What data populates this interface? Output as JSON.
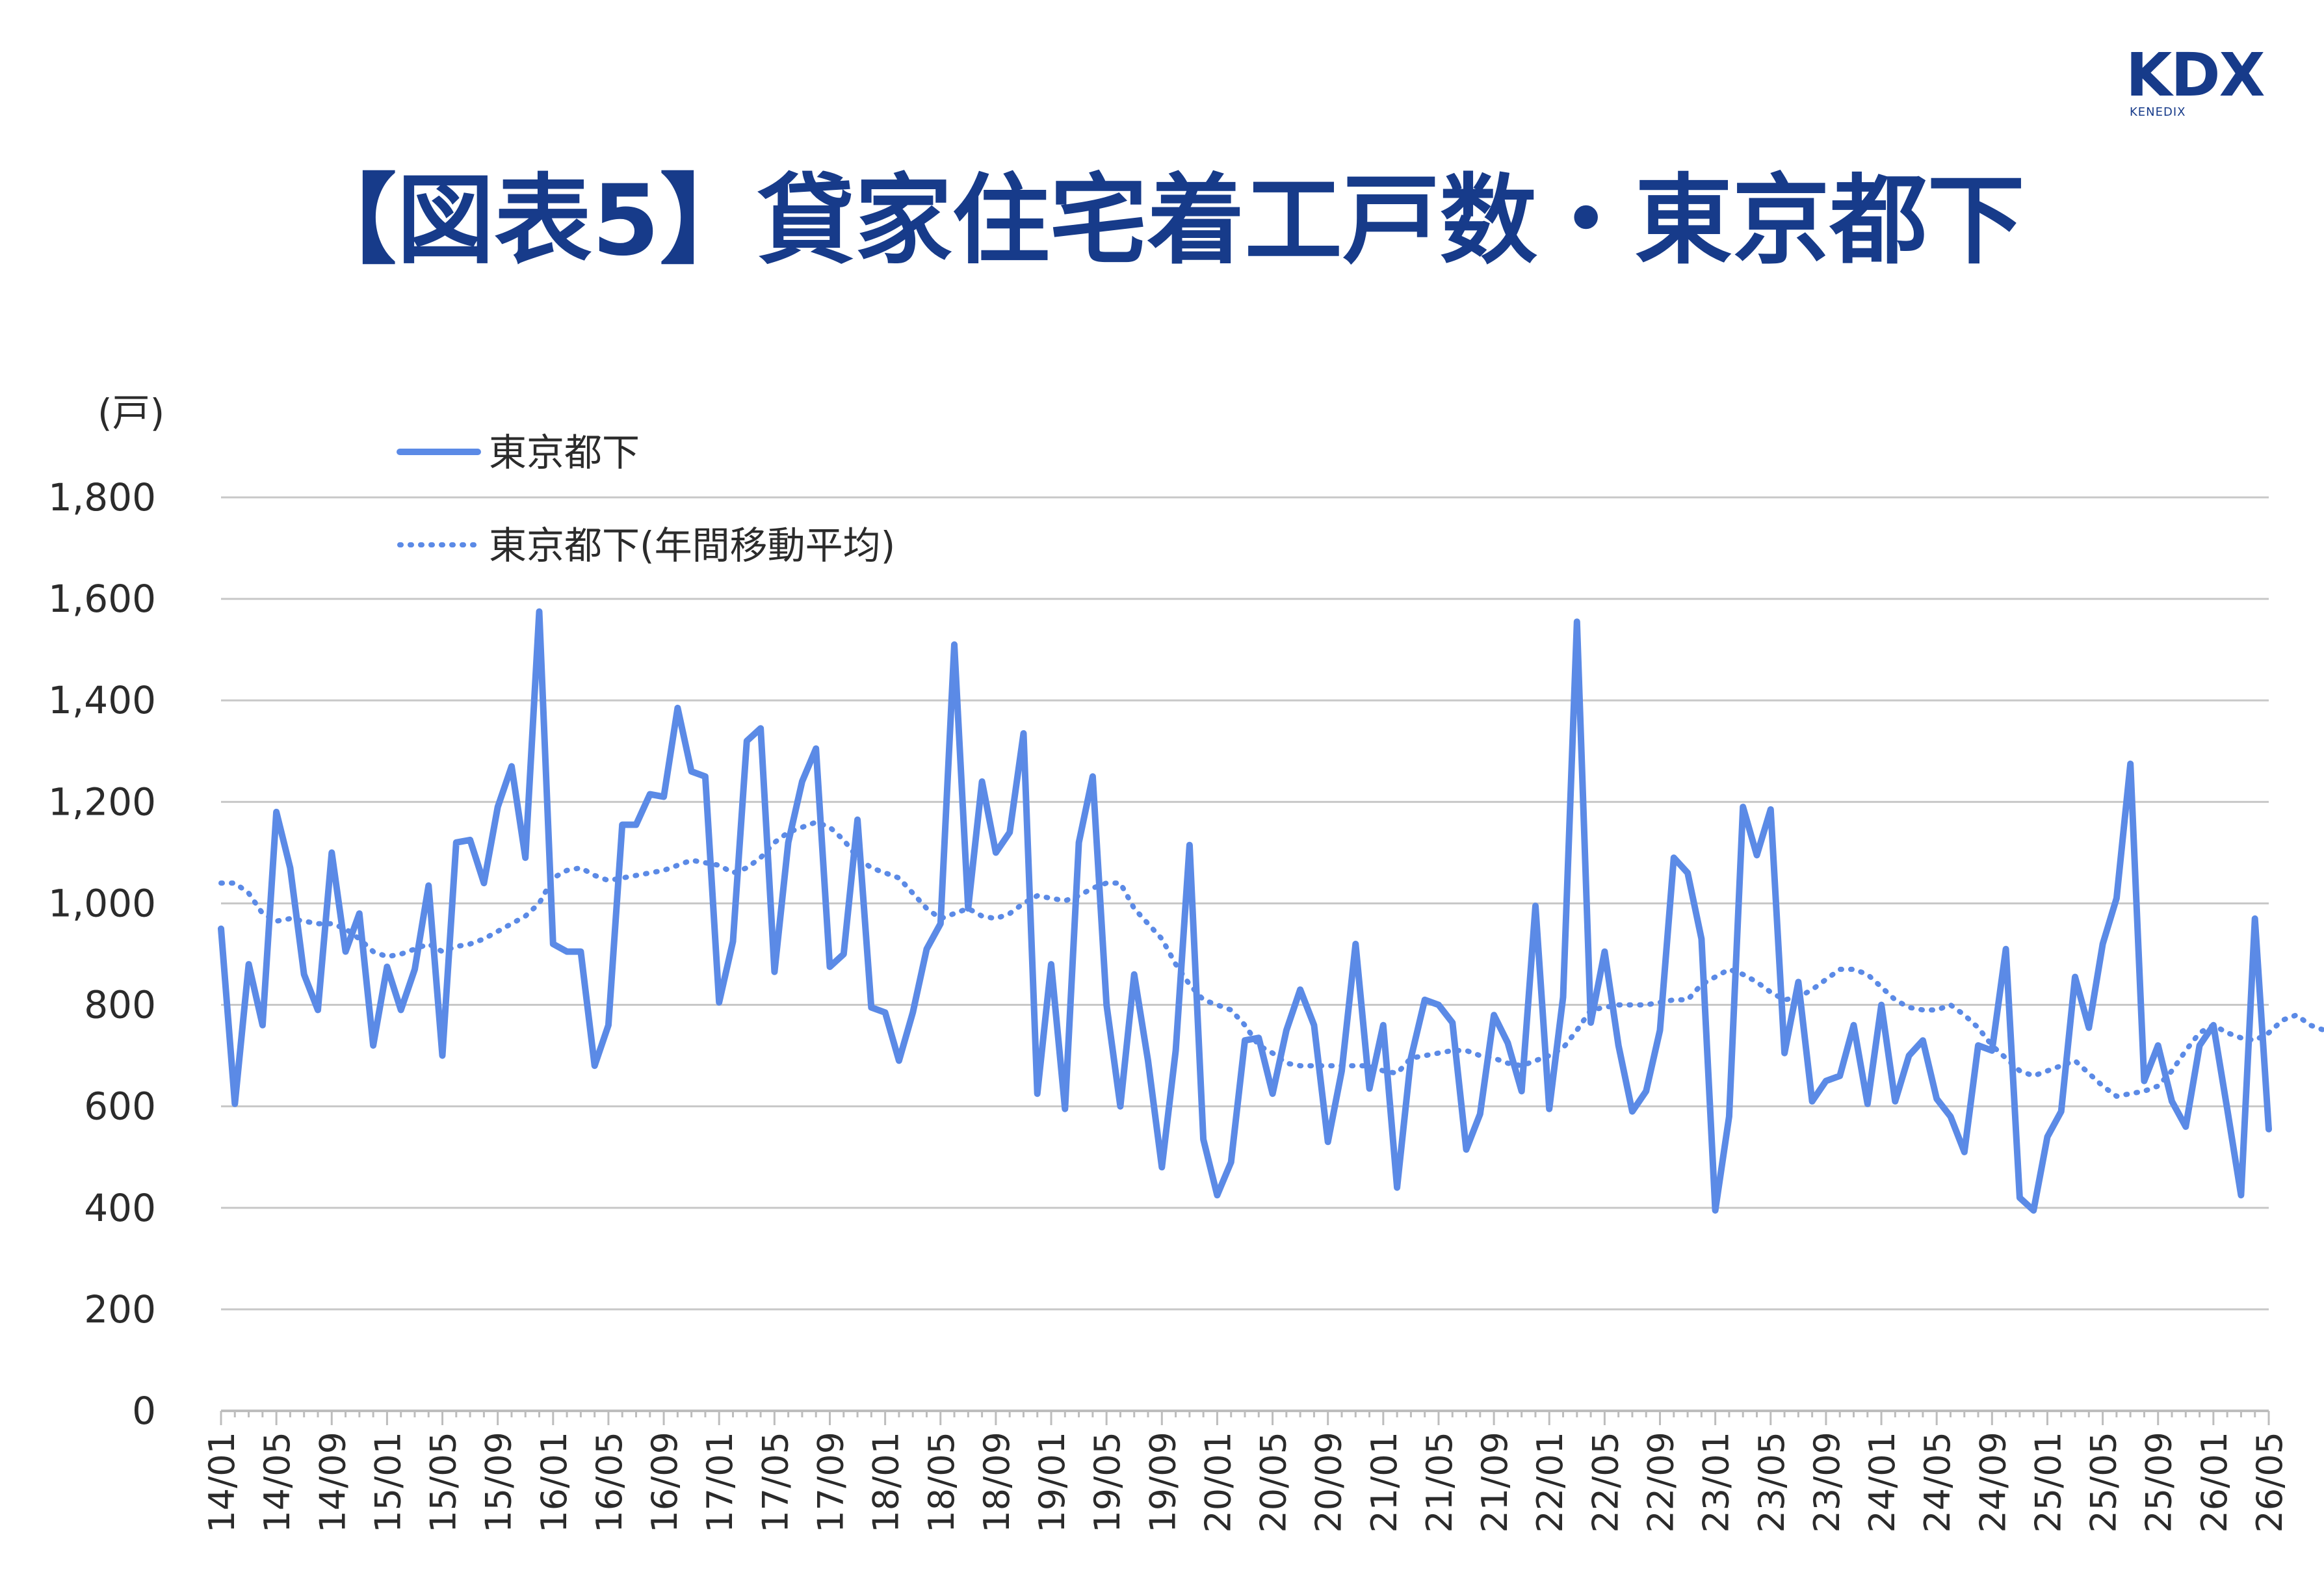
{
  "logo": {
    "main": "KDX",
    "sub": "KENEDIX"
  },
  "title": "【図表5】貸家住宅着工戸数・東京都下",
  "colors": {
    "title": "#173b8a",
    "series": "#5b8ae6",
    "grid": "#c8c8c8"
  },
  "chart_data": {
    "type": "line",
    "title": "【図表5】貸家住宅着工戸数・東京都下",
    "unit_label": "(戸)",
    "ylim": [
      0,
      1800
    ],
    "yticks": [
      0,
      200,
      400,
      600,
      800,
      1000,
      1200,
      1400,
      1600,
      1800
    ],
    "ytick_labels": [
      "0",
      "200",
      "400",
      "600",
      "800",
      "1,000",
      "1,200",
      "1,400",
      "1,600",
      "1,800"
    ],
    "xtick_labels": [
      "14/01",
      "14/05",
      "14/09",
      "15/01",
      "15/05",
      "15/09",
      "16/01",
      "16/05",
      "16/09",
      "17/01",
      "17/05",
      "17/09",
      "18/01",
      "18/05",
      "18/09",
      "19/01",
      "19/05",
      "19/09",
      "20/01",
      "20/05",
      "20/09",
      "21/01",
      "21/05",
      "21/09",
      "22/01",
      "22/05",
      "22/09",
      "23/01",
      "23/05",
      "23/09",
      "24/01",
      "24/05",
      "24/09",
      "25/01",
      "25/05",
      "25/09",
      "26/01",
      "26/05"
    ],
    "grid": true,
    "legend_position": "top-left",
    "series": [
      {
        "name": "東京都下",
        "style": "solid",
        "values": [
          950,
          605,
          880,
          760,
          1180,
          1070,
          860,
          790,
          1100,
          905,
          980,
          720,
          875,
          790,
          870,
          1035,
          700,
          1120,
          1125,
          1040,
          1190,
          1270,
          1090,
          1575,
          920,
          905,
          905,
          680,
          760,
          1155,
          1155,
          1215,
          1210,
          1385,
          1260,
          1250,
          805,
          925,
          1320,
          1345,
          865,
          1120,
          1240,
          1305,
          875,
          900,
          1165,
          795,
          785,
          690,
          785,
          910,
          960,
          1510,
          990,
          1240,
          1100,
          1140,
          1335,
          625,
          880,
          595,
          1120,
          1250,
          800,
          600,
          860,
          690,
          480,
          710,
          1115,
          535,
          425,
          490,
          730,
          735,
          625,
          750,
          830,
          760,
          530,
          670,
          920,
          635,
          760,
          440,
          695,
          810,
          800,
          765,
          515,
          585,
          780,
          725,
          630,
          995,
          595,
          815,
          1555,
          765,
          905,
          720,
          590,
          630,
          750,
          1090,
          1060,
          930,
          395,
          580,
          1190,
          1095,
          1185,
          705,
          845,
          610,
          650,
          660,
          760,
          605,
          800,
          610,
          700,
          730,
          615,
          580,
          510,
          720,
          710,
          910,
          420,
          395,
          540,
          590,
          855,
          755,
          920,
          1010,
          1275,
          650,
          720,
          610,
          560,
          720,
          760,
          595,
          425,
          970,
          555
        ]
      },
      {
        "name": "東京都下(年間移動平均)",
        "style": "dotted",
        "values": [
          1040,
          1040,
          1020,
          980,
          965,
          970,
          965,
          960,
          960,
          950,
          930,
          905,
          895,
          900,
          910,
          920,
          905,
          915,
          920,
          930,
          945,
          960,
          975,
          1000,
          1050,
          1065,
          1070,
          1055,
          1045,
          1050,
          1055,
          1060,
          1065,
          1075,
          1085,
          1080,
          1075,
          1060,
          1070,
          1090,
          1120,
          1140,
          1150,
          1160,
          1150,
          1125,
          1090,
          1070,
          1060,
          1050,
          1020,
          990,
          970,
          980,
          990,
          975,
          970,
          980,
          1000,
          1015,
          1010,
          1005,
          1015,
          1030,
          1040,
          1040,
          990,
          960,
          930,
          880,
          840,
          810,
          800,
          790,
          760,
          720,
          705,
          685,
          680,
          680,
          680,
          680,
          680,
          680,
          670,
          665,
          695,
          700,
          705,
          710,
          710,
          700,
          695,
          685,
          680,
          690,
          700,
          715,
          750,
          790,
          795,
          800,
          800,
          800,
          805,
          810,
          810,
          840,
          855,
          870,
          860,
          845,
          825,
          810,
          815,
          830,
          850,
          870,
          870,
          860,
          835,
          810,
          795,
          790,
          790,
          800,
          780,
          755,
          720,
          695,
          670,
          660,
          670,
          680,
          690,
          665,
          640,
          620,
          625,
          630,
          640,
          670,
          710,
          745,
          760,
          745,
          735,
          730,
          745,
          770,
          780,
          760,
          750,
          750
        ]
      }
    ]
  }
}
